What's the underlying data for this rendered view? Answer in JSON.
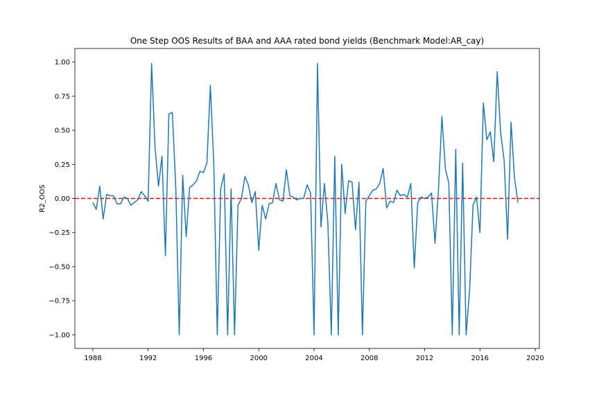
{
  "chart_data": {
    "type": "line",
    "title": "One Step OOS Results of BAA and AAA rated bond yields (Benchmark Model:AR_cay)",
    "xlabel": "",
    "ylabel": "R2_OOS",
    "xlim": [
      1986.7,
      2020.3
    ],
    "ylim": [
      -1.1,
      1.1
    ],
    "x_ticks": [
      1988,
      1992,
      1996,
      2000,
      2004,
      2008,
      2012,
      2016,
      2020
    ],
    "y_ticks": [
      -1.0,
      -0.75,
      -0.5,
      -0.25,
      0.0,
      0.25,
      0.5,
      0.75,
      1.0
    ],
    "x_tick_labels": [
      "1988",
      "1992",
      "1996",
      "2000",
      "2004",
      "2008",
      "2012",
      "2016",
      "2020"
    ],
    "y_tick_labels": [
      "−1.00",
      "−0.75",
      "−0.50",
      "−0.25",
      "0.00",
      "0.25",
      "0.50",
      "0.75",
      "1.00"
    ],
    "series": [
      {
        "color": "#1f77b4",
        "x": [
          1988.0,
          1988.25,
          1988.5,
          1988.75,
          1989.0,
          1989.25,
          1989.5,
          1989.75,
          1990.0,
          1990.25,
          1990.5,
          1990.75,
          1991.0,
          1991.25,
          1991.5,
          1991.75,
          1992.0,
          1992.25,
          1992.5,
          1992.75,
          1993.0,
          1993.25,
          1993.5,
          1993.75,
          1994.0,
          1994.25,
          1994.5,
          1994.75,
          1995.0,
          1995.25,
          1995.5,
          1995.75,
          1996.0,
          1996.25,
          1996.5,
          1996.75,
          1997.0,
          1997.25,
          1997.5,
          1997.75,
          1998.0,
          1998.25,
          1998.5,
          1998.75,
          1999.0,
          1999.25,
          1999.5,
          1999.75,
          2000.0,
          2000.25,
          2000.5,
          2000.75,
          2001.0,
          2001.25,
          2001.5,
          2001.75,
          2002.0,
          2002.25,
          2002.5,
          2002.75,
          2003.0,
          2003.25,
          2003.5,
          2003.75,
          2004.0,
          2004.25,
          2004.5,
          2004.75,
          2005.0,
          2005.25,
          2005.5,
          2005.75,
          2006.0,
          2006.25,
          2006.5,
          2006.75,
          2007.0,
          2007.25,
          2007.5,
          2007.75,
          2008.0,
          2008.25,
          2008.5,
          2008.75,
          2009.0,
          2009.25,
          2009.5,
          2009.75,
          2010.0,
          2010.25,
          2010.5,
          2010.75,
          2011.0,
          2011.25,
          2011.5,
          2011.75,
          2012.0,
          2012.25,
          2012.5,
          2012.75,
          2013.0,
          2013.25,
          2013.5,
          2013.75,
          2014.0,
          2014.25,
          2014.5,
          2014.75,
          2015.0,
          2015.25,
          2015.5,
          2015.75,
          2016.0,
          2016.25,
          2016.5,
          2016.75,
          2017.0,
          2017.25,
          2017.5,
          2017.75,
          2018.0,
          2018.25,
          2018.5,
          2018.75
        ],
        "y": [
          -0.03,
          -0.08,
          0.09,
          -0.15,
          0.03,
          0.02,
          0.02,
          -0.04,
          -0.04,
          0.01,
          0.0,
          -0.05,
          -0.03,
          -0.01,
          0.05,
          0.02,
          -0.02,
          0.99,
          0.37,
          0.09,
          0.31,
          -0.42,
          0.62,
          0.63,
          0.08,
          -1.0,
          0.17,
          -0.28,
          0.08,
          0.1,
          0.13,
          0.2,
          0.19,
          0.26,
          0.83,
          0.25,
          -1.0,
          0.07,
          0.18,
          -1.0,
          0.07,
          -1.0,
          -0.05,
          0.0,
          0.16,
          0.1,
          -0.03,
          0.05,
          -0.38,
          -0.05,
          -0.15,
          -0.04,
          -0.03,
          0.11,
          -0.01,
          -0.02,
          0.21,
          0.02,
          0.01,
          -0.01,
          0.0,
          0.0,
          0.1,
          0.04,
          -1.0,
          0.99,
          -0.21,
          0.11,
          -0.18,
          -1.0,
          0.31,
          -1.0,
          0.25,
          -0.11,
          0.13,
          0.12,
          -0.23,
          0.12,
          -1.0,
          -0.02,
          0.02,
          0.06,
          0.07,
          0.11,
          0.22,
          -0.07,
          -0.02,
          -0.03,
          0.06,
          0.02,
          0.03,
          0.01,
          0.11,
          -0.51,
          -0.03,
          0.01,
          0.0,
          0.01,
          0.04,
          -0.33,
          0.06,
          0.6,
          0.22,
          0.11,
          -1.0,
          0.36,
          -1.0,
          0.26,
          -1.0,
          -0.68,
          -0.05,
          0.01,
          -0.25,
          0.7,
          0.43,
          0.49,
          0.27,
          0.93,
          0.48,
          0.28,
          -0.3,
          0.56,
          0.15,
          -0.03
        ]
      }
    ],
    "reference_line": {
      "y": 0.0,
      "color": "#ff0000",
      "style": "dashed"
    },
    "grid": false,
    "legend": "none"
  }
}
